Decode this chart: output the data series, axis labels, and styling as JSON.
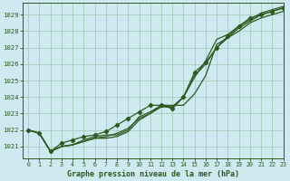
{
  "title": "Graphe pression niveau de la mer (hPa)",
  "background_color": "#cee9f0",
  "grid_color": "#a8ccbb",
  "line_color": "#2d5a1e",
  "xlim": [
    -0.5,
    23
  ],
  "ylim": [
    1020.3,
    1029.7
  ],
  "yticks": [
    1021,
    1022,
    1023,
    1024,
    1025,
    1026,
    1027,
    1028,
    1029
  ],
  "xticks": [
    0,
    1,
    2,
    3,
    4,
    5,
    6,
    7,
    8,
    9,
    10,
    11,
    12,
    13,
    14,
    15,
    16,
    17,
    18,
    19,
    20,
    21,
    22,
    23
  ],
  "series": [
    {
      "y": [
        1022.0,
        1021.8,
        1020.7,
        1021.0,
        1021.1,
        1021.4,
        1021.6,
        1021.7,
        1021.7,
        1022.0,
        1022.8,
        1023.1,
        1023.5,
        1023.5,
        1023.5,
        1024.2,
        1025.3,
        1027.2,
        1027.6,
        1028.0,
        1028.5,
        1028.8,
        1029.0,
        1029.2
      ],
      "marker": false,
      "linewidth": 0.9
    },
    {
      "y": [
        1022.0,
        1021.8,
        1020.7,
        1021.0,
        1021.1,
        1021.3,
        1021.5,
        1021.5,
        1021.6,
        1021.9,
        1022.6,
        1023.0,
        1023.4,
        1023.4,
        1024.0,
        1025.3,
        1026.0,
        1027.0,
        1027.6,
        1028.2,
        1028.6,
        1029.0,
        1029.2,
        1029.4
      ],
      "marker": false,
      "linewidth": 0.9
    },
    {
      "y": [
        1022.0,
        1021.8,
        1020.7,
        1021.0,
        1021.1,
        1021.3,
        1021.5,
        1021.6,
        1021.8,
        1022.1,
        1022.7,
        1023.0,
        1023.5,
        1023.4,
        1024.0,
        1025.2,
        1026.2,
        1027.5,
        1027.8,
        1028.3,
        1028.7,
        1029.1,
        1029.3,
        1029.5
      ],
      "marker": false,
      "linewidth": 0.9
    },
    {
      "y": [
        1022.0,
        1021.8,
        1020.7,
        1021.2,
        1021.4,
        1021.6,
        1021.7,
        1021.9,
        1022.3,
        1022.7,
        1023.1,
        1023.5,
        1023.5,
        1023.3,
        1024.0,
        1025.5,
        1026.1,
        1027.0,
        1027.7,
        1028.3,
        1028.8,
        1029.0,
        1029.2,
        1029.4
      ],
      "marker": true,
      "linewidth": 0.9
    }
  ]
}
